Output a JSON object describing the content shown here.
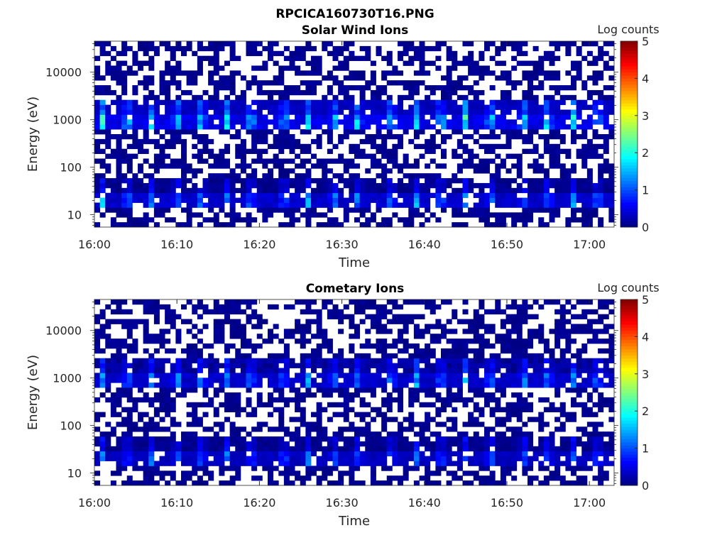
{
  "figure_title": "RPCICA160730T16.PNG",
  "chart_data": [
    {
      "type": "heatmap",
      "title": "Solar Wind Ions",
      "xlabel": "Time",
      "ylabel": "Energy (eV)",
      "yscale": "log",
      "ylim": [
        5.5,
        45000
      ],
      "xlim": [
        "16:00",
        "17:03"
      ],
      "x_ticks": [
        "16:00",
        "16:10",
        "16:20",
        "16:30",
        "16:40",
        "16:50",
        "17:00"
      ],
      "y_ticks": [
        10,
        100,
        1000,
        10000
      ],
      "y_tick_labels": [
        "10",
        "100",
        "1000",
        "10000"
      ],
      "colorbar": {
        "label": "Log counts",
        "range": [
          0,
          5
        ],
        "ticks": [
          "0",
          "1",
          "2",
          "3",
          "4",
          "5"
        ],
        "colormap": "jet"
      },
      "bands": [
        {
          "energy_range_eV": [
            1200,
            2500
          ],
          "max_log_counts": 1.5
        },
        {
          "energy_range_eV": [
            600,
            1200
          ],
          "max_log_counts": 2.5
        },
        {
          "energy_range_eV": [
            30,
            60
          ],
          "max_log_counts": 0.8
        },
        {
          "energy_range_eV": [
            15,
            30
          ],
          "max_log_counts": 1.8
        }
      ],
      "peak_times": [
        "16:01",
        "16:04",
        "16:07",
        "16:10",
        "16:13",
        "16:16",
        "16:19",
        "16:23",
        "16:26",
        "16:29",
        "16:32",
        "16:36",
        "16:39",
        "16:42",
        "16:45",
        "16:48",
        "16:52",
        "16:55",
        "16:58",
        "17:01"
      ],
      "grid": false
    },
    {
      "type": "heatmap",
      "title": "Cometary Ions",
      "xlabel": "Time",
      "ylabel": "Energy (eV)",
      "yscale": "log",
      "ylim": [
        5.5,
        45000
      ],
      "xlim": [
        "16:00",
        "17:03"
      ],
      "x_ticks": [
        "16:00",
        "16:10",
        "16:20",
        "16:30",
        "16:40",
        "16:50",
        "17:00"
      ],
      "y_ticks": [
        10,
        100,
        1000,
        10000
      ],
      "y_tick_labels": [
        "10",
        "100",
        "1000",
        "10000"
      ],
      "colorbar": {
        "label": "Log counts",
        "range": [
          0,
          5
        ],
        "ticks": [
          "0",
          "1",
          "2",
          "3",
          "4",
          "5"
        ],
        "colormap": "jet"
      },
      "bands": [
        {
          "energy_range_eV": [
            1200,
            2500
          ],
          "max_log_counts": 1.0
        },
        {
          "energy_range_eV": [
            600,
            1200
          ],
          "max_log_counts": 1.8
        },
        {
          "energy_range_eV": [
            30,
            60
          ],
          "max_log_counts": 0.8
        },
        {
          "energy_range_eV": [
            15,
            30
          ],
          "max_log_counts": 1.5
        }
      ],
      "peak_times": [
        "16:01",
        "16:04",
        "16:07",
        "16:10",
        "16:13",
        "16:16",
        "16:19",
        "16:23",
        "16:26",
        "16:29",
        "16:32",
        "16:36",
        "16:39",
        "16:42",
        "16:45",
        "16:48",
        "16:52",
        "16:55",
        "16:58",
        "17:01"
      ],
      "grid": false
    }
  ]
}
